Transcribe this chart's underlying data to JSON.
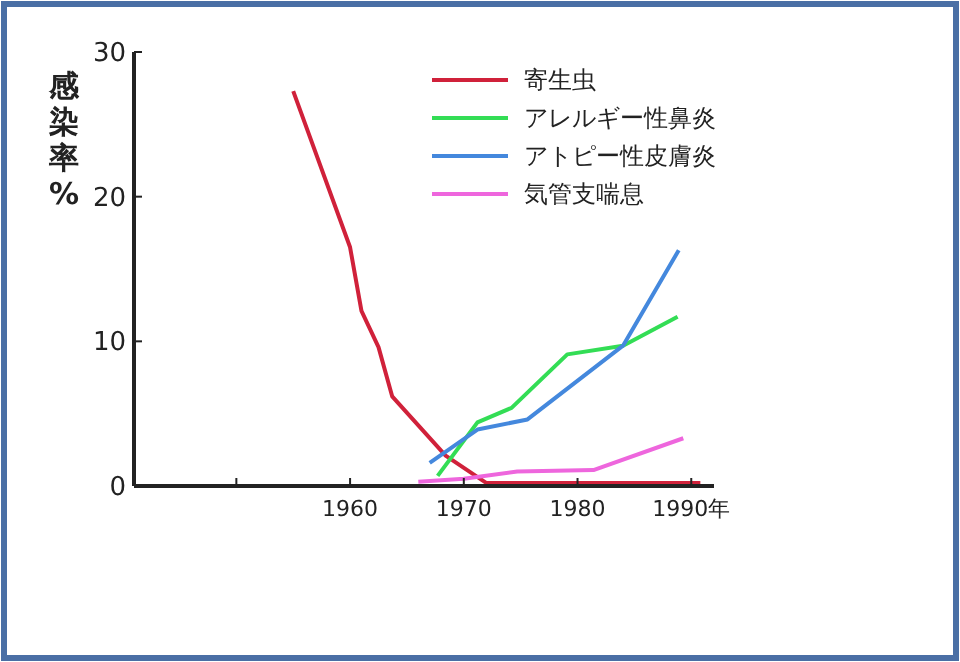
{
  "chart_data": {
    "type": "line",
    "ylabel": "感染率%",
    "xlim": [
      1941,
      1992
    ],
    "ylim": [
      0,
      30
    ],
    "xticks": [
      {
        "value": 1950,
        "label": null
      },
      1960,
      1970,
      1980,
      {
        "value": 1990,
        "label": "1990年"
      }
    ],
    "yticks": [
      0,
      10,
      20,
      30
    ],
    "grid": false,
    "legend": "top right",
    "marker": "none",
    "line_style": "solid",
    "series": [
      {
        "name": "寄生虫",
        "color": "#d0213a",
        "x": [
          1955,
          1960,
          1961,
          1962.5,
          1963.7,
          1968.4,
          1972,
          1990.8
        ],
        "values": [
          27.3,
          16.5,
          12.1,
          9.6,
          6.2,
          2.1,
          0.2,
          0.2
        ]
      },
      {
        "name": "アレルギー性鼻炎",
        "color": "#33dd55",
        "x": [
          1967.7,
          1971.2,
          1974.2,
          1979.1,
          1984,
          1988.8
        ],
        "values": [
          0.7,
          4.4,
          5.4,
          9.1,
          9.7,
          11.7
        ]
      },
      {
        "name": "アトピー性皮膚炎",
        "color": "#4488dd",
        "x": [
          1967,
          1971.2,
          1975.6,
          1984,
          1988.9
        ],
        "values": [
          1.6,
          3.9,
          4.6,
          9.7,
          16.3
        ]
      },
      {
        "name": "気管支喘息",
        "color": "#ee66dd",
        "x": [
          1966,
          1970,
          1974.7,
          1981.4,
          1989.3
        ],
        "values": [
          0.3,
          0.5,
          1.0,
          1.1,
          3.3
        ]
      }
    ]
  }
}
